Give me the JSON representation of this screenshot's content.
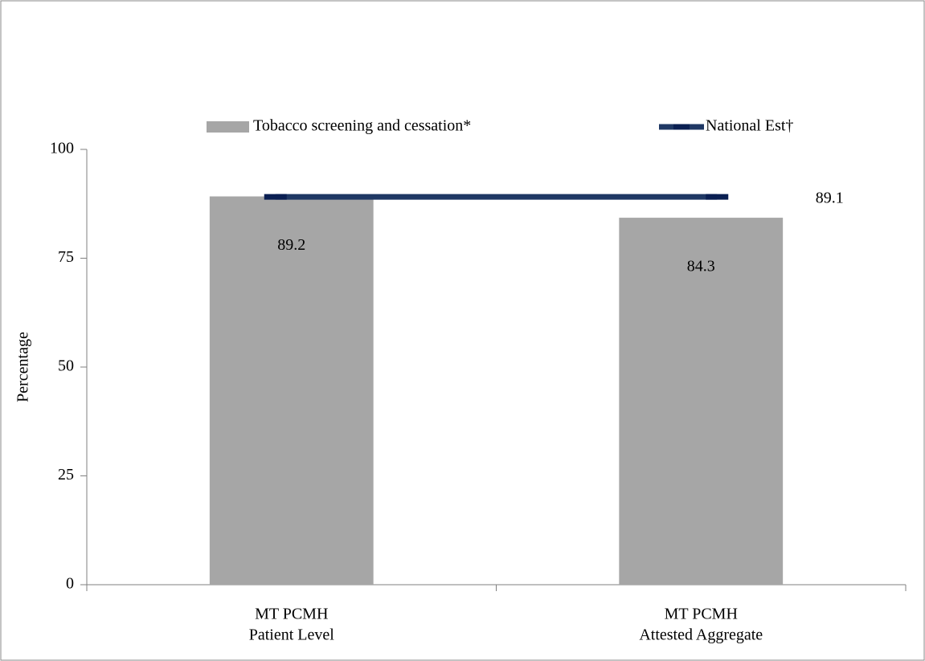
{
  "chart_data": {
    "type": "bar",
    "categories": [
      [
        "MT PCMH",
        "Patient Level"
      ],
      [
        "MT PCMH",
        "Attested Aggregate"
      ]
    ],
    "series": [
      {
        "name": "Tobacco screening and cessation*",
        "type": "bar",
        "color": "#a6a6a6",
        "values": [
          89.2,
          84.3
        ]
      },
      {
        "name": "National Est†",
        "type": "line",
        "color": "#1f3864",
        "values": [
          89.1,
          89.1
        ]
      }
    ],
    "ylabel": "Percentage",
    "ylim": [
      0,
      100
    ],
    "yticks": [
      0,
      25,
      50,
      75,
      100
    ]
  }
}
